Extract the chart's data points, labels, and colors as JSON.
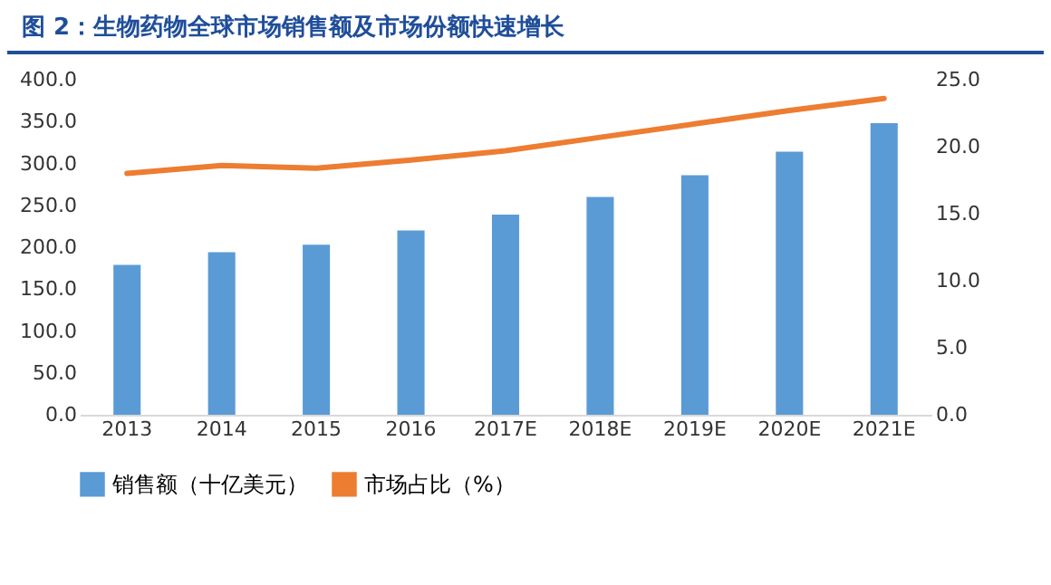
{
  "chart_data": {
    "type": "bar",
    "title": "图 2：生物药物全球市场销售额及市场份额快速增长",
    "categories": [
      "2013",
      "2014",
      "2015",
      "2016",
      "2017E",
      "2018E",
      "2019E",
      "2020E",
      "2021E"
    ],
    "series": [
      {
        "name": "销售额（十亿美元）",
        "color": "#5b9bd5",
        "values": [
          179,
          194,
          203,
          220,
          239,
          260,
          286,
          314,
          348
        ]
      },
      {
        "name": "市场占比（%）",
        "type": "line",
        "axis": "y2",
        "color": "#ed7d31",
        "values": [
          18.0,
          18.6,
          18.4,
          19.0,
          19.7,
          20.7,
          21.7,
          22.7,
          23.6
        ]
      }
    ],
    "ylim": [
      0,
      400
    ],
    "yticks": [
      {
        "value": 0,
        "label": "0.0"
      },
      {
        "value": 50,
        "label": "50.0"
      },
      {
        "value": 100,
        "label": "100.0"
      },
      {
        "value": 150,
        "label": "150.0"
      },
      {
        "value": 200,
        "label": "200.0"
      },
      {
        "value": 250,
        "label": "250.0"
      },
      {
        "value": 300,
        "label": "300.0"
      },
      {
        "value": 350,
        "label": "350.0"
      },
      {
        "value": 400,
        "label": "400.0"
      }
    ],
    "y2lim": [
      0,
      25
    ],
    "y2ticks": [
      {
        "value": 0,
        "label": "0.0"
      },
      {
        "value": 5,
        "label": "5.0"
      },
      {
        "value": 10,
        "label": "10.0"
      },
      {
        "value": 15,
        "label": "15.0"
      },
      {
        "value": 20,
        "label": "20.0"
      },
      {
        "value": 25,
        "label": "25.0"
      }
    ],
    "legend": "bottom",
    "grid": false
  }
}
